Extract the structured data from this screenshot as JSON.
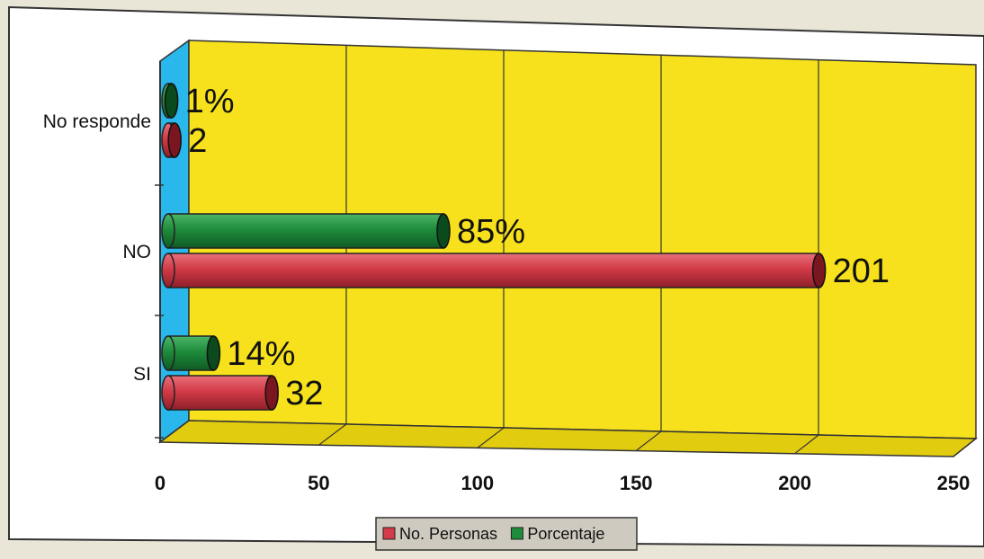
{
  "chart_data": {
    "type": "bar",
    "orientation": "horizontal",
    "categories": [
      "SI",
      "NO",
      "No responde"
    ],
    "series": [
      {
        "name": "No. Personas",
        "values": [
          32,
          201,
          2
        ],
        "labels": [
          "32",
          "201",
          "2"
        ],
        "color": "#d23b47"
      },
      {
        "name": "Porcentaje",
        "values": [
          14,
          85,
          1
        ],
        "labels": [
          "14%",
          "85%",
          "1%"
        ],
        "color": "#1e8c3c"
      }
    ],
    "xlim": [
      0,
      250
    ],
    "xticks": [
      "0",
      "50",
      "100",
      "150",
      "200",
      "250"
    ],
    "grid": true,
    "legend": "bottom",
    "colors": {
      "wall": "#f6e11c",
      "floor": "#e2cc10",
      "side_wall": "#29b7ec"
    }
  }
}
